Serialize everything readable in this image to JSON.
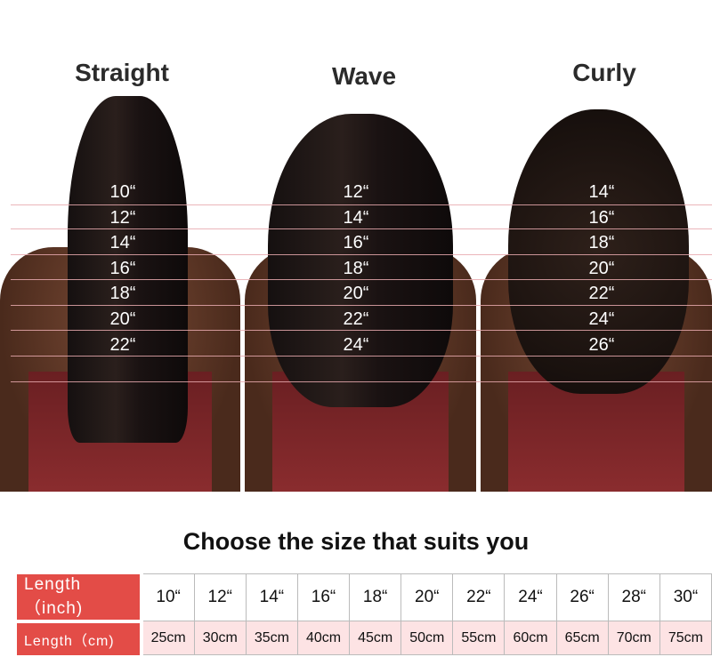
{
  "styles": [
    {
      "name": "Straight",
      "lengths": [
        "10“",
        "12“",
        "14“",
        "16“",
        "18“",
        "20“",
        "22“"
      ]
    },
    {
      "name": "Wave",
      "lengths": [
        "12“",
        "14“",
        "16“",
        "18“",
        "20“",
        "22“",
        "24“"
      ]
    },
    {
      "name": "Curly",
      "lengths": [
        "14“",
        "16“",
        "18“",
        "20“",
        "22“",
        "24“",
        "26“"
      ]
    }
  ],
  "headline": "Choose the size that suits you",
  "table": {
    "inch_label": "Length（inch)",
    "cm_label": "Length（cm)",
    "inches": [
      "10“",
      "12“",
      "14“",
      "16“",
      "18“",
      "20“",
      "22“",
      "24“",
      "26“",
      "28“",
      "30“"
    ],
    "cm": [
      "25cm",
      "30cm",
      "35cm",
      "40cm",
      "45cm",
      "50cm",
      "55cm",
      "60cm",
      "65cm",
      "70cm",
      "75cm"
    ]
  },
  "colors": {
    "header_red": "#e34c47",
    "cm_row_bg": "#fde3e4",
    "guide_line": "#e8a9ae"
  }
}
